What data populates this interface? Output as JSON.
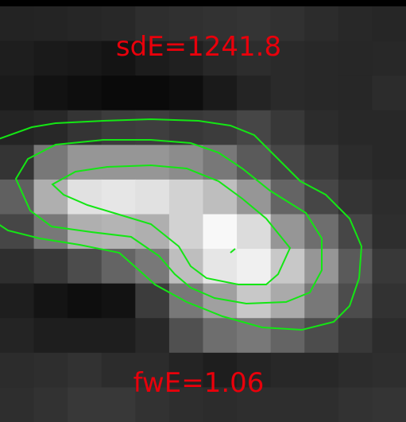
{
  "annotations": {
    "top_label": "sdE=1241.8",
    "bottom_label": "fwE=1.06"
  },
  "colors": {
    "label": "#e8000b",
    "contour": "#14e614",
    "border": "#000000",
    "background": "#ffffff"
  },
  "image": {
    "columns": 12,
    "rows": 12,
    "gray_levels": [
      [
        35,
        36,
        38,
        40,
        46,
        48,
        50,
        52,
        49,
        44,
        40,
        38
      ],
      [
        30,
        26,
        24,
        20,
        28,
        32,
        40,
        45,
        42,
        40,
        39,
        40
      ],
      [
        26,
        18,
        14,
        10,
        10,
        14,
        26,
        36,
        42,
        40,
        39,
        44
      ],
      [
        36,
        40,
        52,
        60,
        62,
        56,
        60,
        70,
        56,
        44,
        40,
        40
      ],
      [
        52,
        120,
        150,
        150,
        150,
        140,
        120,
        90,
        70,
        56,
        44,
        40
      ],
      [
        96,
        175,
        225,
        230,
        225,
        210,
        190,
        150,
        100,
        70,
        52,
        44
      ],
      [
        70,
        120,
        175,
        180,
        175,
        210,
        248,
        220,
        150,
        110,
        70,
        46
      ],
      [
        46,
        56,
        76,
        100,
        120,
        190,
        230,
        240,
        200,
        150,
        90,
        56
      ],
      [
        30,
        20,
        14,
        18,
        60,
        120,
        160,
        200,
        170,
        120,
        76,
        50
      ],
      [
        36,
        30,
        30,
        30,
        40,
        80,
        110,
        120,
        100,
        76,
        56,
        44
      ],
      [
        44,
        46,
        50,
        44,
        44,
        36,
        30,
        36,
        40,
        40,
        44,
        46
      ],
      [
        46,
        50,
        56,
        56,
        50,
        46,
        44,
        46,
        46,
        46,
        50,
        52
      ]
    ]
  }
}
